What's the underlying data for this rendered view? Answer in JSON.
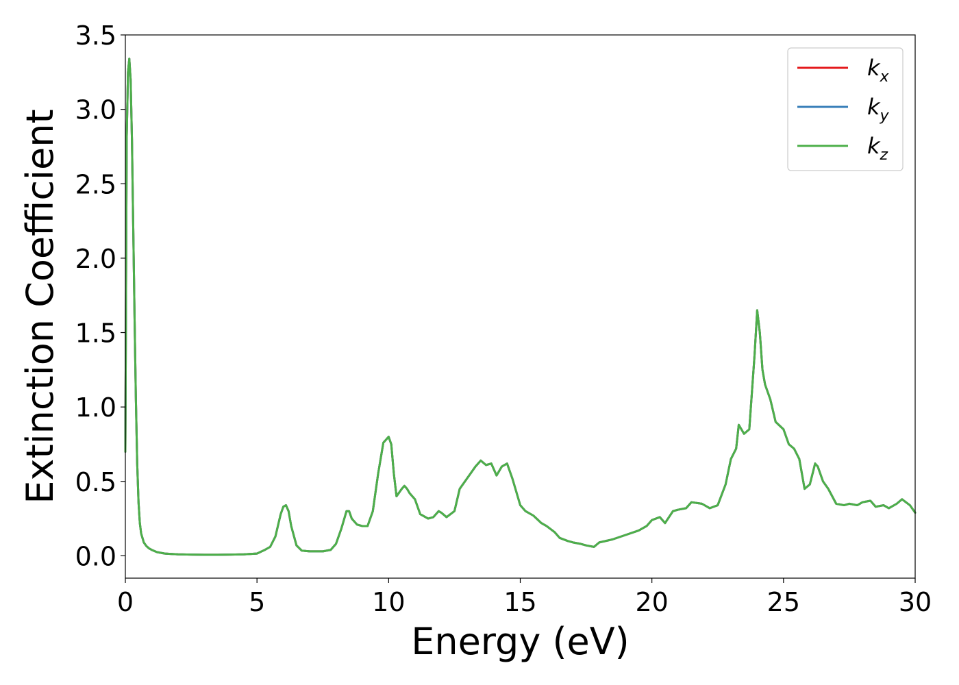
{
  "chart_data": {
    "type": "line",
    "title": "",
    "xlabel": "Energy (eV)",
    "ylabel": "Extinction Coefficient",
    "xlim": [
      0,
      30
    ],
    "ylim": [
      -0.15,
      3.5
    ],
    "xticks": [
      0,
      5,
      10,
      15,
      20,
      25,
      30
    ],
    "xtick_labels": [
      "0",
      "5",
      "10",
      "15",
      "20",
      "25",
      "30"
    ],
    "yticks": [
      0.0,
      0.5,
      1.0,
      1.5,
      2.0,
      2.5,
      3.0,
      3.5
    ],
    "ytick_labels": [
      "0.0",
      "0.5",
      "1.0",
      "1.5",
      "2.0",
      "2.5",
      "3.0",
      "3.5"
    ],
    "grid": false,
    "legend_position": "top-right",
    "x": [
      0.0,
      0.05,
      0.1,
      0.15,
      0.2,
      0.25,
      0.3,
      0.35,
      0.4,
      0.45,
      0.5,
      0.55,
      0.6,
      0.7,
      0.8,
      0.9,
      1.0,
      1.2,
      1.5,
      2.0,
      2.5,
      3.0,
      3.5,
      4.0,
      4.5,
      5.0,
      5.3,
      5.5,
      5.7,
      5.9,
      6.0,
      6.1,
      6.2,
      6.3,
      6.5,
      6.7,
      7.0,
      7.5,
      7.8,
      8.0,
      8.2,
      8.4,
      8.5,
      8.6,
      8.8,
      9.0,
      9.2,
      9.4,
      9.6,
      9.8,
      9.9,
      10.0,
      10.1,
      10.2,
      10.3,
      10.5,
      10.6,
      10.7,
      10.8,
      11.0,
      11.2,
      11.5,
      11.7,
      11.9,
      12.0,
      12.2,
      12.5,
      12.7,
      12.9,
      13.1,
      13.3,
      13.5,
      13.7,
      13.9,
      14.1,
      14.3,
      14.5,
      14.7,
      14.9,
      15.0,
      15.2,
      15.5,
      15.8,
      16.0,
      16.3,
      16.5,
      16.8,
      17.0,
      17.3,
      17.5,
      17.8,
      18.0,
      18.5,
      19.0,
      19.5,
      19.8,
      20.0,
      20.3,
      20.5,
      20.8,
      21.0,
      21.3,
      21.5,
      21.9,
      22.2,
      22.5,
      22.8,
      23.0,
      23.2,
      23.3,
      23.5,
      23.7,
      23.9,
      24.0,
      24.1,
      24.2,
      24.3,
      24.5,
      24.7,
      25.0,
      25.2,
      25.4,
      25.6,
      25.8,
      26.0,
      26.2,
      26.3,
      26.5,
      26.7,
      27.0,
      27.3,
      27.5,
      27.8,
      28.0,
      28.3,
      28.5,
      28.8,
      29.0,
      29.3,
      29.5,
      29.8,
      30.0
    ],
    "series": [
      {
        "name": "k_x",
        "color": "#e41a1c",
        "values": [
          0.7,
          2.8,
          3.25,
          3.34,
          3.2,
          2.8,
          2.2,
          1.6,
          1.05,
          0.62,
          0.36,
          0.22,
          0.15,
          0.09,
          0.065,
          0.05,
          0.04,
          0.025,
          0.015,
          0.01,
          0.008,
          0.007,
          0.007,
          0.008,
          0.01,
          0.015,
          0.04,
          0.06,
          0.13,
          0.28,
          0.33,
          0.34,
          0.3,
          0.2,
          0.07,
          0.035,
          0.03,
          0.03,
          0.04,
          0.08,
          0.18,
          0.3,
          0.3,
          0.25,
          0.21,
          0.2,
          0.2,
          0.3,
          0.55,
          0.76,
          0.78,
          0.8,
          0.75,
          0.55,
          0.4,
          0.45,
          0.47,
          0.45,
          0.42,
          0.38,
          0.28,
          0.25,
          0.26,
          0.3,
          0.29,
          0.26,
          0.3,
          0.45,
          0.5,
          0.55,
          0.6,
          0.64,
          0.61,
          0.62,
          0.54,
          0.6,
          0.62,
          0.52,
          0.4,
          0.34,
          0.3,
          0.27,
          0.22,
          0.2,
          0.16,
          0.12,
          0.1,
          0.09,
          0.08,
          0.07,
          0.06,
          0.09,
          0.11,
          0.14,
          0.17,
          0.2,
          0.24,
          0.26,
          0.22,
          0.3,
          0.31,
          0.32,
          0.36,
          0.35,
          0.32,
          0.34,
          0.48,
          0.65,
          0.72,
          0.88,
          0.82,
          0.85,
          1.35,
          1.65,
          1.5,
          1.25,
          1.15,
          1.05,
          0.9,
          0.85,
          0.75,
          0.72,
          0.65,
          0.45,
          0.48,
          0.62,
          0.6,
          0.5,
          0.45,
          0.35,
          0.34,
          0.35,
          0.34,
          0.36,
          0.37,
          0.33,
          0.34,
          0.32,
          0.35,
          0.38,
          0.34,
          0.29
        ]
      },
      {
        "name": "k_y",
        "color": "#377eb8",
        "values": [
          0.7,
          2.8,
          3.25,
          3.34,
          3.2,
          2.8,
          2.2,
          1.6,
          1.05,
          0.62,
          0.36,
          0.22,
          0.15,
          0.09,
          0.065,
          0.05,
          0.04,
          0.025,
          0.015,
          0.01,
          0.008,
          0.007,
          0.007,
          0.008,
          0.01,
          0.015,
          0.04,
          0.06,
          0.13,
          0.28,
          0.33,
          0.34,
          0.3,
          0.2,
          0.07,
          0.035,
          0.03,
          0.03,
          0.04,
          0.08,
          0.18,
          0.3,
          0.3,
          0.25,
          0.21,
          0.2,
          0.2,
          0.3,
          0.55,
          0.76,
          0.78,
          0.8,
          0.75,
          0.55,
          0.4,
          0.45,
          0.47,
          0.45,
          0.42,
          0.38,
          0.28,
          0.25,
          0.26,
          0.3,
          0.29,
          0.26,
          0.3,
          0.45,
          0.5,
          0.55,
          0.6,
          0.64,
          0.61,
          0.62,
          0.54,
          0.6,
          0.62,
          0.52,
          0.4,
          0.34,
          0.3,
          0.27,
          0.22,
          0.2,
          0.16,
          0.12,
          0.1,
          0.09,
          0.08,
          0.07,
          0.06,
          0.09,
          0.11,
          0.14,
          0.17,
          0.2,
          0.24,
          0.26,
          0.22,
          0.3,
          0.31,
          0.32,
          0.36,
          0.35,
          0.32,
          0.34,
          0.48,
          0.65,
          0.72,
          0.88,
          0.82,
          0.85,
          1.35,
          1.65,
          1.5,
          1.25,
          1.15,
          1.05,
          0.9,
          0.85,
          0.75,
          0.72,
          0.65,
          0.45,
          0.48,
          0.62,
          0.6,
          0.5,
          0.45,
          0.35,
          0.34,
          0.35,
          0.34,
          0.36,
          0.37,
          0.33,
          0.34,
          0.32,
          0.35,
          0.38,
          0.34,
          0.29
        ]
      },
      {
        "name": "k_z",
        "color": "#4daf4a",
        "values": [
          0.7,
          2.8,
          3.25,
          3.34,
          3.2,
          2.8,
          2.2,
          1.6,
          1.05,
          0.62,
          0.36,
          0.22,
          0.15,
          0.09,
          0.065,
          0.05,
          0.04,
          0.025,
          0.015,
          0.01,
          0.008,
          0.007,
          0.007,
          0.008,
          0.01,
          0.015,
          0.04,
          0.06,
          0.13,
          0.28,
          0.33,
          0.34,
          0.3,
          0.2,
          0.07,
          0.035,
          0.03,
          0.03,
          0.04,
          0.08,
          0.18,
          0.3,
          0.3,
          0.25,
          0.21,
          0.2,
          0.2,
          0.3,
          0.55,
          0.76,
          0.78,
          0.8,
          0.75,
          0.55,
          0.4,
          0.45,
          0.47,
          0.45,
          0.42,
          0.38,
          0.28,
          0.25,
          0.26,
          0.3,
          0.29,
          0.26,
          0.3,
          0.45,
          0.5,
          0.55,
          0.6,
          0.64,
          0.61,
          0.62,
          0.54,
          0.6,
          0.62,
          0.52,
          0.4,
          0.34,
          0.3,
          0.27,
          0.22,
          0.2,
          0.16,
          0.12,
          0.1,
          0.09,
          0.08,
          0.07,
          0.06,
          0.09,
          0.11,
          0.14,
          0.17,
          0.2,
          0.24,
          0.26,
          0.22,
          0.3,
          0.31,
          0.32,
          0.36,
          0.35,
          0.32,
          0.34,
          0.48,
          0.65,
          0.72,
          0.88,
          0.82,
          0.85,
          1.35,
          1.65,
          1.5,
          1.25,
          1.15,
          1.05,
          0.9,
          0.85,
          0.75,
          0.72,
          0.65,
          0.45,
          0.48,
          0.62,
          0.6,
          0.5,
          0.45,
          0.35,
          0.34,
          0.35,
          0.34,
          0.36,
          0.37,
          0.33,
          0.34,
          0.32,
          0.35,
          0.38,
          0.34,
          0.29
        ]
      }
    ],
    "legend": [
      {
        "base": "k",
        "sub": "x",
        "color": "#e41a1c"
      },
      {
        "base": "k",
        "sub": "y",
        "color": "#377eb8"
      },
      {
        "base": "k",
        "sub": "z",
        "color": "#4daf4a"
      }
    ]
  }
}
